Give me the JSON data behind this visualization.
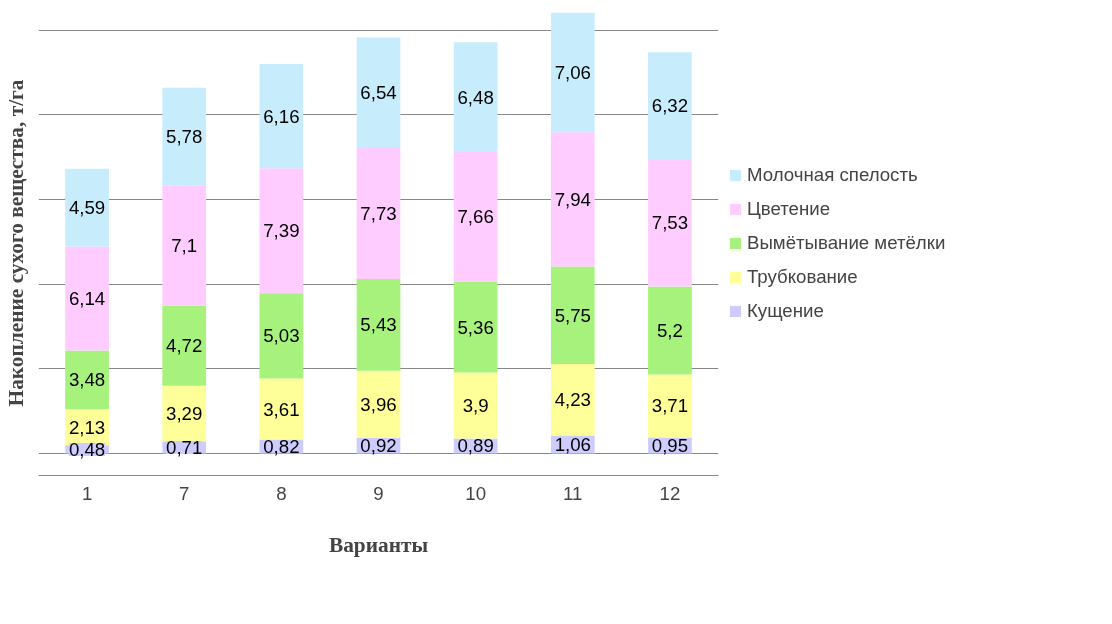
{
  "chart_data": {
    "type": "bar",
    "stacked": true,
    "xlabel": "Варианты",
    "ylabel": "Накопление сухого вещества, т/га",
    "categories": [
      "1",
      "7",
      "8",
      "9",
      "10",
      "11",
      "12"
    ],
    "series": [
      {
        "name": "Кущение",
        "color": "#ccccff",
        "values": [
          0.48,
          0.71,
          0.82,
          0.92,
          0.89,
          1.06,
          0.95
        ],
        "value_labels": [
          "0,48",
          "0,71",
          "0,82",
          "0,92",
          "0,89",
          "1,06",
          "0,95"
        ]
      },
      {
        "name": "Трубкование",
        "color": "#ffff99",
        "values": [
          2.13,
          3.29,
          3.61,
          3.96,
          3.9,
          4.23,
          3.71
        ],
        "value_labels": [
          "2,13",
          "3,29",
          "3,61",
          "3,96",
          "3,9",
          "4,23",
          "3,71"
        ]
      },
      {
        "name": "Вымётывание метёлки",
        "color": "#a6f27c",
        "values": [
          3.48,
          4.72,
          5.03,
          5.43,
          5.36,
          5.75,
          5.2
        ],
        "value_labels": [
          "3,48",
          "4,72",
          "5,03",
          "5,43",
          "5,36",
          "5,75",
          "5,2"
        ]
      },
      {
        "name": "Цветение",
        "color": "#ffccff",
        "values": [
          6.14,
          7.1,
          7.39,
          7.73,
          7.66,
          7.94,
          7.53
        ],
        "value_labels": [
          "6,14",
          "7,1",
          "7,39",
          "7,73",
          "7,66",
          "7,94",
          "7,53"
        ]
      },
      {
        "name": "Молочная спелость",
        "color": "#c7ecfb",
        "values": [
          4.59,
          5.78,
          6.16,
          6.54,
          6.48,
          7.06,
          6.32
        ],
        "value_labels": [
          "4,59",
          "5,78",
          "6,16",
          "6,54",
          "6,48",
          "7,06",
          "6,32"
        ]
      }
    ],
    "grid": "y",
    "legend": "right"
  }
}
